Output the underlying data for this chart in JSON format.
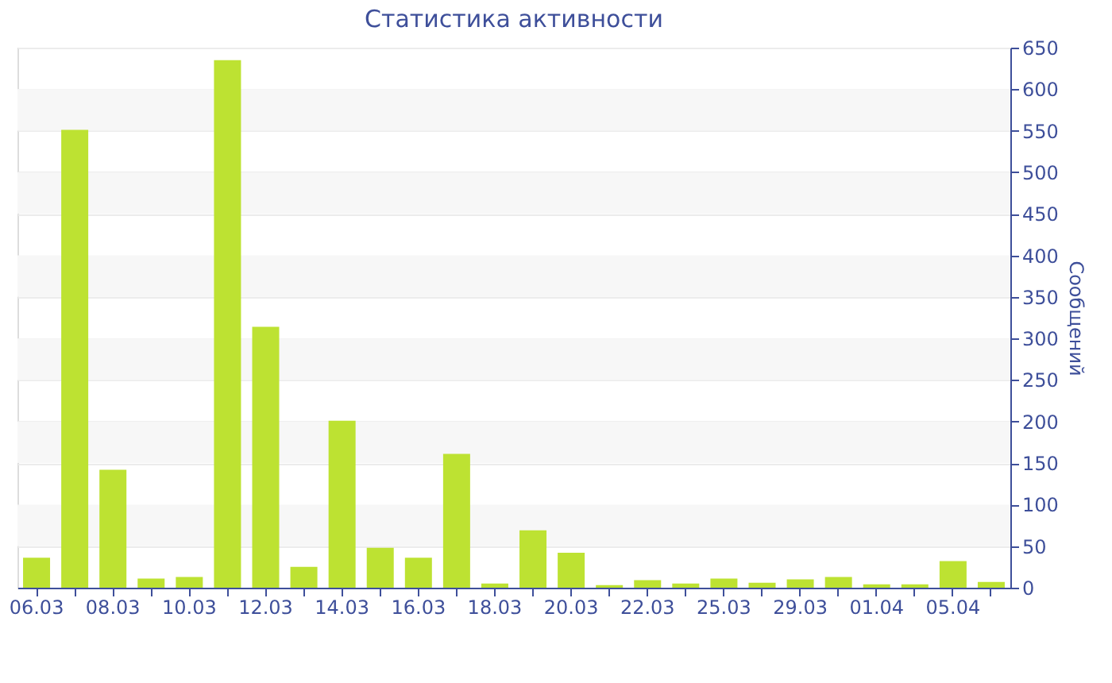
{
  "chart_data": {
    "type": "bar",
    "title": "Статистика активности",
    "ylabel": "Сообщений",
    "categories": [
      "06.03",
      null,
      "08.03",
      null,
      "10.03",
      null,
      "12.03",
      null,
      "14.03",
      null,
      "16.03",
      null,
      "18.03",
      null,
      "20.03",
      null,
      "22.03",
      null,
      "25.03",
      null,
      "29.03",
      null,
      "01.04",
      null,
      "05.04",
      null
    ],
    "values": [
      36,
      551,
      142,
      11,
      13,
      635,
      314,
      25,
      201,
      48,
      36,
      161,
      5,
      69,
      42,
      3,
      9,
      5,
      11,
      6,
      10,
      13,
      4,
      4,
      32,
      7
    ],
    "color": "#bde232",
    "ylim": [
      0,
      650
    ],
    "yticks": [
      0,
      50,
      100,
      150,
      200,
      250,
      300,
      350,
      400,
      450,
      500,
      550,
      600,
      650
    ],
    "grid": "y"
  }
}
